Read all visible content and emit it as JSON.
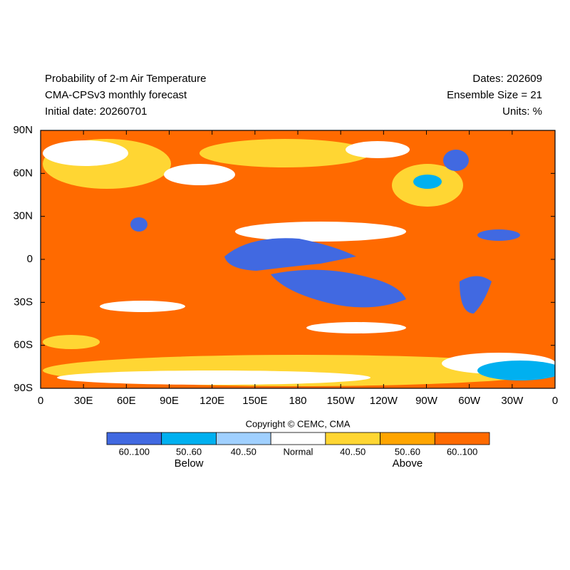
{
  "header": {
    "left_lines": [
      "Probability of 2-m Air Temperature",
      "CMA-CPSv3 monthly forecast",
      "Initial date: 20260701"
    ],
    "right_lines": [
      "Dates: 202609",
      "Ensemble Size = 21",
      "Units: %"
    ]
  },
  "map": {
    "y_labels": [
      "90N",
      "60N",
      "30N",
      "0",
      "30S",
      "60S",
      "90S"
    ],
    "x_labels": [
      "0",
      "30E",
      "60E",
      "90E",
      "120E",
      "150E",
      "180",
      "150W",
      "120W",
      "90W",
      "60W",
      "30W",
      "0"
    ]
  },
  "copyright": "Copyright © CEMC, CMA",
  "legend": {
    "bins": [
      {
        "label": "60..100",
        "color": "#4169e1"
      },
      {
        "label": "50..60",
        "color": "#00b0f0"
      },
      {
        "label": "40..50",
        "color": "#a0d0ff"
      },
      {
        "label": "Normal",
        "color": "#ffffff"
      },
      {
        "label": "40..50",
        "color": "#ffd633"
      },
      {
        "label": "50..60",
        "color": "#ffa500"
      },
      {
        "label": "60..100",
        "color": "#ff6a00"
      }
    ],
    "below_label": "Below",
    "above_label": "Above"
  }
}
